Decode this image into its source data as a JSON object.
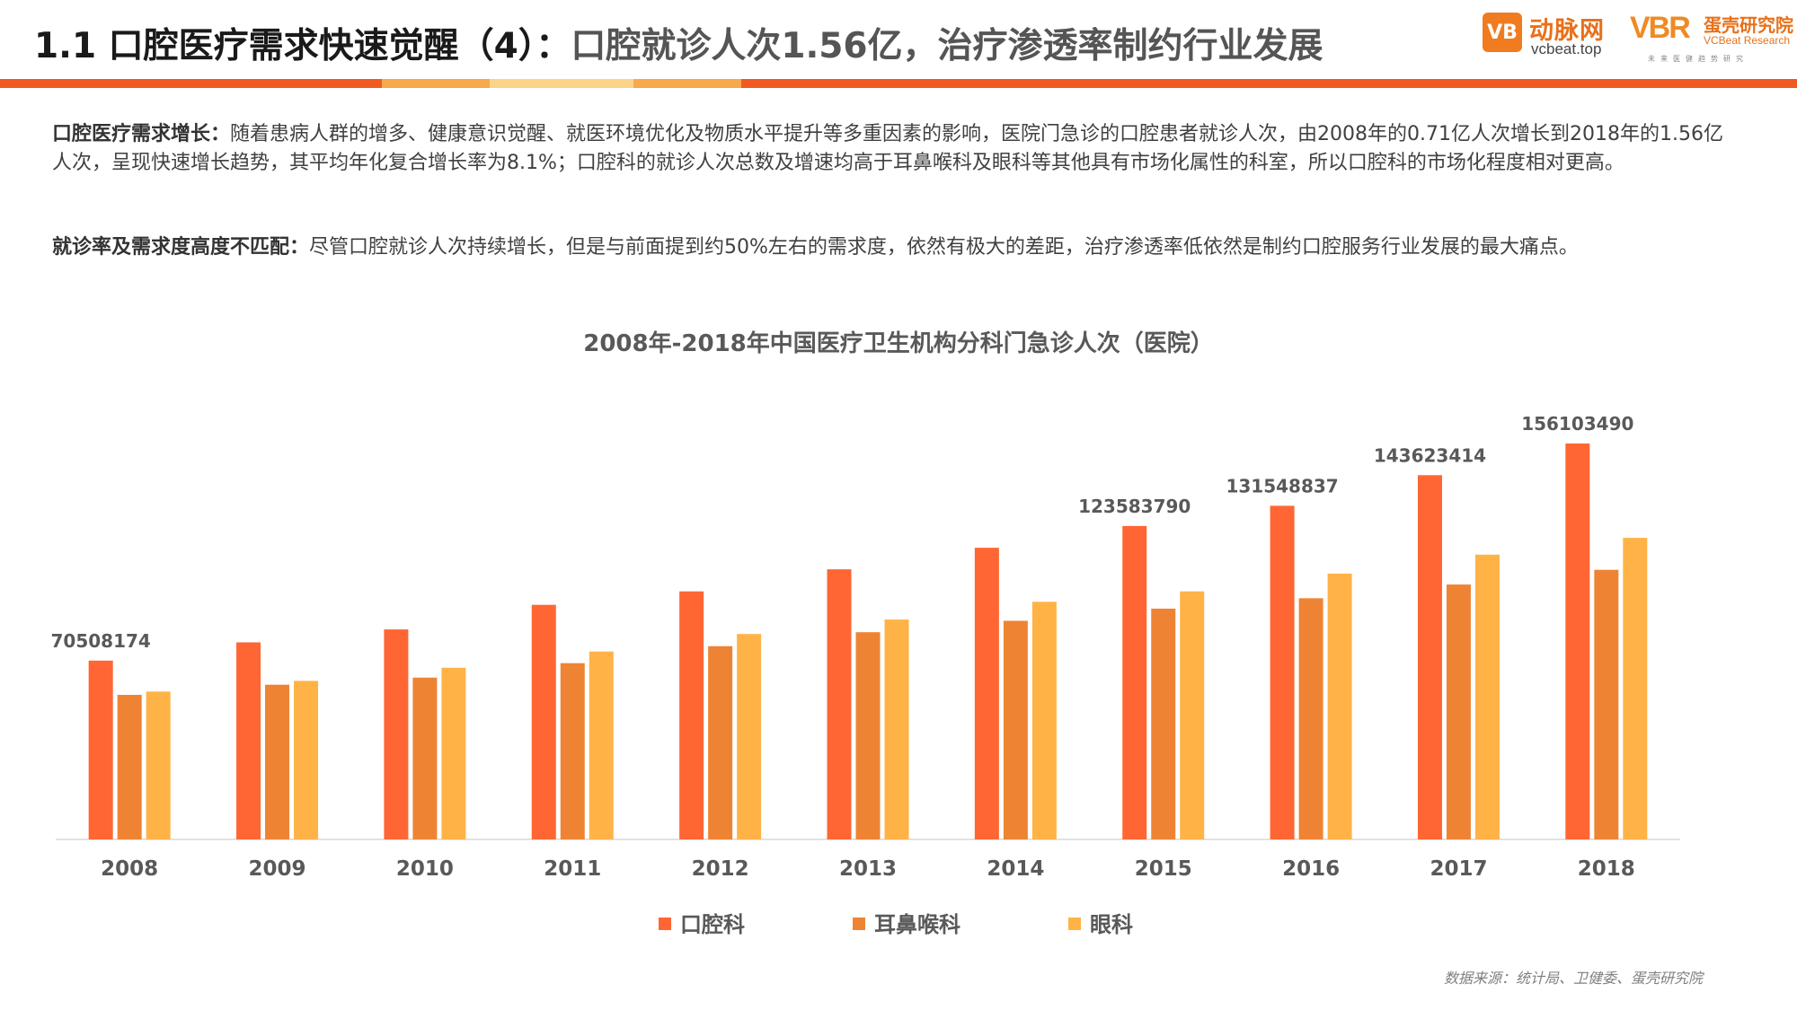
{
  "header": {
    "title_main": "1.1 口腔医疗需求快速觉醒（4）：",
    "title_sub": "口腔就诊人次1.56亿，治疗渗透率制约行业发展",
    "bar_colors": [
      "#f05a22",
      "#f7a94b",
      "#fbd48a",
      "#f7a94b",
      "#f05a22"
    ]
  },
  "logos": {
    "vcbeat_icon": "VB",
    "vcbeat_name": "动脉网",
    "vcbeat_url": "vcbeat.top",
    "vbr_mark": "VBR",
    "vbr_name": "蛋壳研究院",
    "vbr_en": "VCBeat Research",
    "vbr_tag": "未来医健趋势研究"
  },
  "paragraphs": [
    {
      "lead": "口腔医疗需求增长：",
      "text": "随着患病人群的增多、健康意识觉醒、就医环境优化及物质水平提升等多重因素的影响，医院门急诊的口腔患者就诊人次，由2008年的0.71亿人次增长到2018年的1.56亿人次，呈现快速增长趋势，其平均年化复合增长率为8.1%；口腔科的就诊人次总数及增速均高于耳鼻喉科及眼科等其他具有市场化属性的科室，所以口腔科的市场化程度相对更高。"
    },
    {
      "lead": "就诊率及需求度高度不匹配：",
      "text": "尽管口腔就诊人次持续增长，但是与前面提到约50%左右的需求度，依然有极大的差距，治疗渗透率低依然是制约口腔服务行业发展的最大痛点。"
    }
  ],
  "chart_data": {
    "type": "bar",
    "title": "2008年-2018年中国医疗卫生机构分科门急诊人次（医院）",
    "categories": [
      "2008",
      "2009",
      "2010",
      "2011",
      "2012",
      "2013",
      "2014",
      "2015",
      "2016",
      "2017",
      "2018"
    ],
    "series": [
      {
        "name": "口腔科",
        "color": "#ff6633",
        "values": [
          70508174,
          77700000,
          82800000,
          92500000,
          97800000,
          106500000,
          115000000,
          123583790,
          131548837,
          143623414,
          156103490
        ],
        "labels": [
          "70508174",
          "",
          "",
          "",
          "",
          "",
          "",
          "123583790",
          "131548837",
          "143623414",
          "156103490"
        ]
      },
      {
        "name": "耳鼻喉科",
        "color": "#ee8433",
        "values": [
          57000000,
          61000000,
          63800000,
          69500000,
          76200000,
          81700000,
          86200000,
          91000000,
          95100000,
          100500000,
          106300000
        ]
      },
      {
        "name": "眼科",
        "color": "#ffb347",
        "values": [
          58300000,
          62500000,
          67700000,
          74100000,
          81000000,
          86700000,
          93700000,
          97800000,
          104800000,
          112300000,
          118900000
        ]
      }
    ],
    "ylim": [
      0,
      160000000
    ],
    "grid": false,
    "legend_position": "bottom"
  },
  "source": "数据来源：统计局、卫健委、蛋壳研究院"
}
